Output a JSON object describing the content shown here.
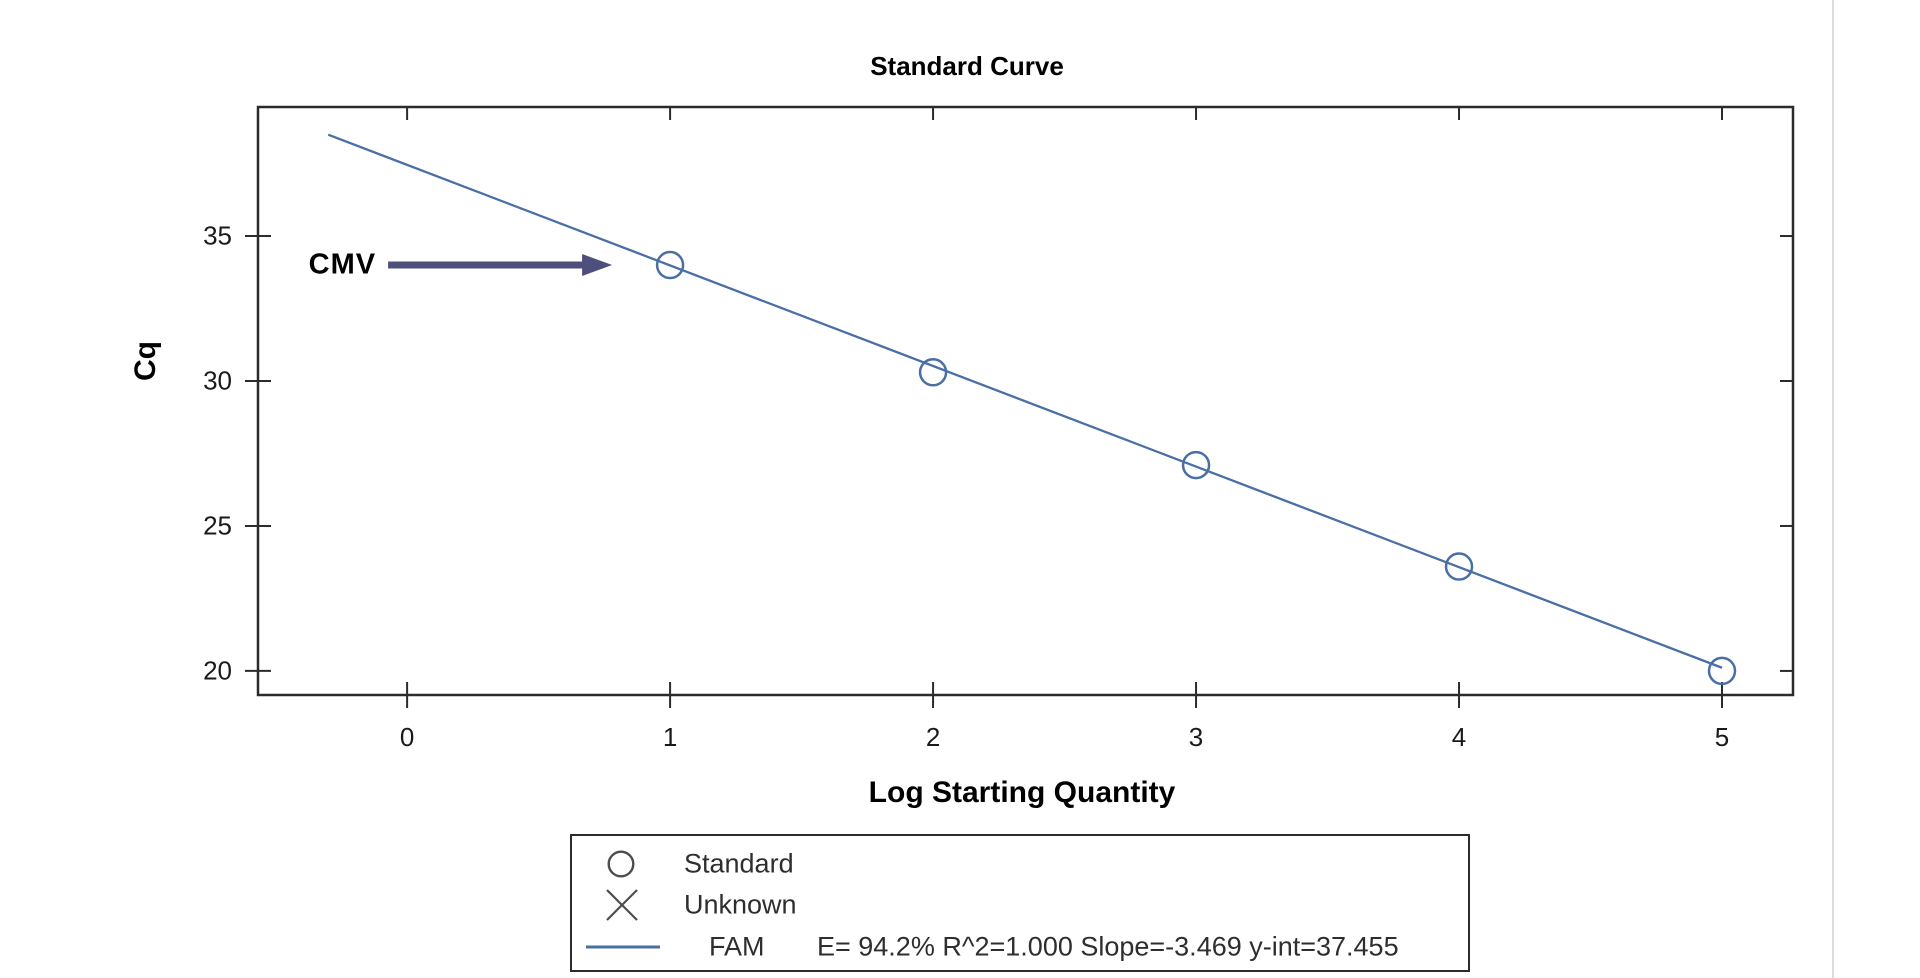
{
  "chart": {
    "title": "Standard Curve",
    "xlabel": "Log Starting Quantity",
    "ylabel": "Cq"
  },
  "legend": {
    "entries": [
      {
        "icon": "circle-marker-icon",
        "label": "Standard"
      },
      {
        "icon": "x-marker-icon",
        "label": "Unknown"
      },
      {
        "icon": "line-marker-icon",
        "label": "FAM",
        "stats": "E= 94.2% R^2=1.000 Slope=-3.469 y-int=37.455"
      }
    ]
  },
  "chart_data": {
    "type": "scatter",
    "title": "Standard Curve",
    "xlabel": "Log Starting Quantity",
    "ylabel": "Cq",
    "xlim": [
      -0.567,
      5.27
    ],
    "ylim": [
      19.17,
      39.45
    ],
    "x_ticks": [
      0,
      1,
      2,
      3,
      4,
      5
    ],
    "y_ticks": [
      20,
      25,
      30,
      35
    ],
    "grid": false,
    "legend_position": "bottom-center",
    "series": [
      {
        "name": "Standard",
        "marker": "circle",
        "x": [
          1,
          2,
          3,
          4,
          5
        ],
        "y": [
          34.0,
          30.3,
          27.1,
          23.6,
          20.0
        ]
      },
      {
        "name": "FAM",
        "type": "line",
        "x_range": [
          -0.3,
          5.0
        ],
        "equation": "Cq = -3.469*log10(SQ) + 37.455"
      }
    ],
    "fit": {
      "fluorophore": "FAM",
      "efficiency_pct": 94.2,
      "r_squared": 1.0,
      "slope_value": -3.469,
      "y_intercept_value": 37.455
    },
    "annotation": {
      "text": "CMV",
      "target": {
        "x": 1,
        "y": 34.0
      }
    },
    "colors": {
      "curve": "#4a6fa5",
      "marker": "#4a6fa5",
      "arrow": "#4f4f7d",
      "axis": "#2b2b2b",
      "tick_text": "#1a1a1a",
      "legend_marker": "#4d4d4d"
    }
  }
}
